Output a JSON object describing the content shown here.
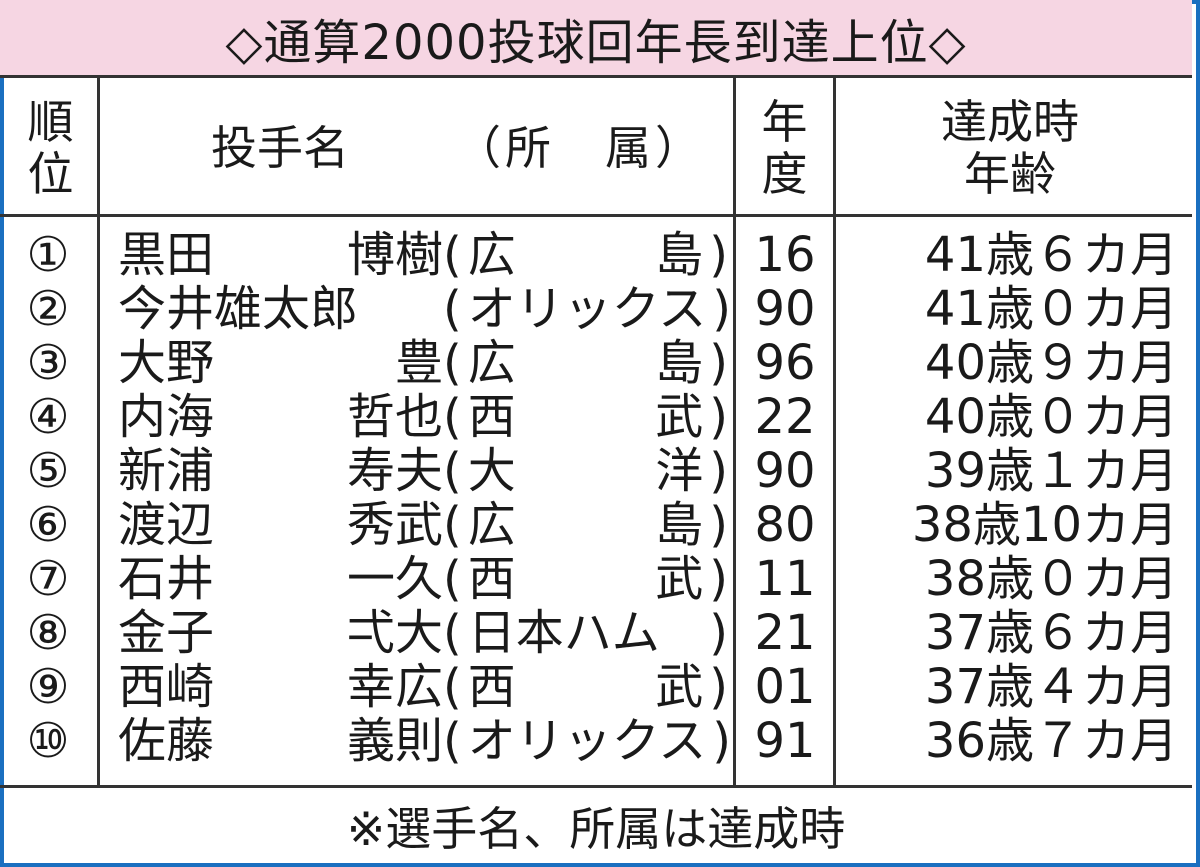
{
  "title": "◇通算2000投球回年長到達上位◇",
  "header": {
    "rank": "順位",
    "name": "投手名",
    "team": "（所　属）",
    "year": "年度",
    "age": "達成時年齢"
  },
  "rows": [
    {
      "rank": "①",
      "family": "黒田",
      "given": "博樹",
      "team": "広　島",
      "year": "16",
      "age": "41歳６カ月"
    },
    {
      "rank": "②",
      "family": "今井雄太郎",
      "given": "",
      "team": "オリックス",
      "year": "90",
      "age": "41歳０カ月"
    },
    {
      "rank": "③",
      "family": "大野",
      "given": "豊",
      "team": "広　島",
      "year": "96",
      "age": "40歳９カ月"
    },
    {
      "rank": "④",
      "family": "内海",
      "given": "哲也",
      "team": "西　武",
      "year": "22",
      "age": "40歳０カ月"
    },
    {
      "rank": "⑤",
      "family": "新浦",
      "given": "寿夫",
      "team": "大　洋",
      "year": "90",
      "age": "39歳１カ月"
    },
    {
      "rank": "⑥",
      "family": "渡辺",
      "given": "秀武",
      "team": "広　島",
      "year": "80",
      "age": "38歳10カ月"
    },
    {
      "rank": "⑦",
      "family": "石井",
      "given": "一久",
      "team": "西　武",
      "year": "11",
      "age": "38歳０カ月"
    },
    {
      "rank": "⑧",
      "family": "金子",
      "given": "弌大",
      "team": "日本ハム",
      "year": "21",
      "age": "37歳６カ月"
    },
    {
      "rank": "⑨",
      "family": "西崎",
      "given": "幸広",
      "team": "西　武",
      "year": "01",
      "age": "37歳４カ月"
    },
    {
      "rank": "⑩",
      "family": "佐藤",
      "given": "義則",
      "team": "オリックス",
      "year": "91",
      "age": "36歳７カ月"
    }
  ],
  "footnote": "※選手名、所属は達成時",
  "colors": {
    "border": "#1a6fc0",
    "title_bg": "#f6d6e3"
  }
}
